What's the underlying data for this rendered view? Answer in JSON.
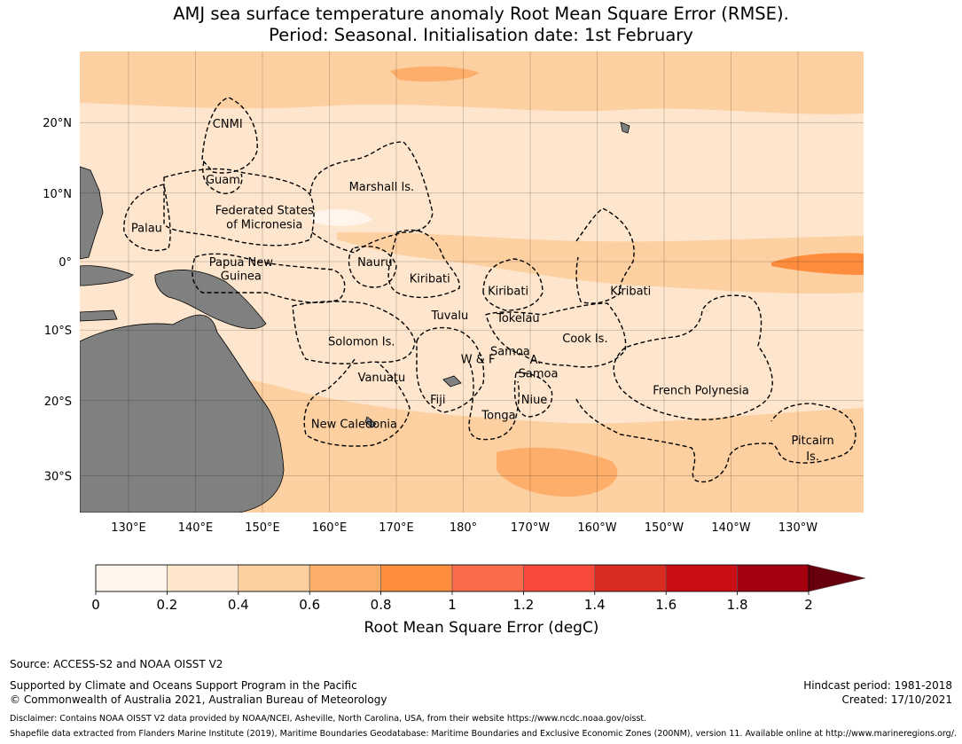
{
  "title": {
    "line1": "AMJ sea surface temperature anomaly Root Mean Square Error (RMSE).",
    "line2": "Period: Seasonal. Initialisation date: 1st February"
  },
  "map": {
    "lat_labels": [
      {
        "text": "20°N",
        "lat": 20
      },
      {
        "text": "10°N",
        "lat": 10
      },
      {
        "text": "0°",
        "lat": 0
      },
      {
        "text": "10°S",
        "lat": -10
      },
      {
        "text": "20°S",
        "lat": -20
      },
      {
        "text": "30°S",
        "lat": -30
      }
    ],
    "lon_labels": [
      {
        "text": "130°E",
        "lon": 130
      },
      {
        "text": "140°E",
        "lon": 140
      },
      {
        "text": "150°E",
        "lon": 150
      },
      {
        "text": "160°E",
        "lon": 160
      },
      {
        "text": "170°E",
        "lon": 170
      },
      {
        "text": "180°",
        "lon": 180
      },
      {
        "text": "170°W",
        "lon": 190
      },
      {
        "text": "160°W",
        "lon": 200
      },
      {
        "text": "150°W",
        "lon": 210
      },
      {
        "text": "140°W",
        "lon": 220
      },
      {
        "text": "130°W",
        "lon": 230
      }
    ],
    "regions": [
      {
        "name": "CNMI",
        "lon": 144.8,
        "lat": 19.9
      },
      {
        "name": "Guam",
        "lon": 144.1,
        "lat": 12.0
      },
      {
        "name": "Marshall Is.",
        "lon": 167.8,
        "lat": 11.0
      },
      {
        "name": "Federated States",
        "lon": 150.3,
        "lat": 7.6
      },
      {
        "name": "of Micronesia",
        "lon": 150.3,
        "lat": 5.5
      },
      {
        "name": "Palau",
        "lon": 132.7,
        "lat": 5.0
      },
      {
        "name": "Nauru",
        "lon": 166.8,
        "lat": 0.0
      },
      {
        "name": "Papua New",
        "lon": 146.8,
        "lat": 0.0
      },
      {
        "name": "Guinea",
        "lon": 146.8,
        "lat": -2.0
      },
      {
        "name": "Kiribati",
        "lon": 175.0,
        "lat": -2.4
      },
      {
        "name": "Kiribati",
        "lon": 186.7,
        "lat": -4.2
      },
      {
        "name": "Kiribati",
        "lon": 205.0,
        "lat": -4.2
      },
      {
        "name": "Tuvalu",
        "lon": 178.0,
        "lat": -7.8
      },
      {
        "name": "Tokelau",
        "lon": 188.2,
        "lat": -8.2
      },
      {
        "name": "Solomon Is.",
        "lon": 164.8,
        "lat": -11.6
      },
      {
        "name": "Cook Is.",
        "lon": 198.2,
        "lat": -11.1
      },
      {
        "name": "Samoa",
        "lon": 187.0,
        "lat": -13.0
      },
      {
        "name": "W & F",
        "lon": 182.2,
        "lat": -14.1
      },
      {
        "name": "A.",
        "lon": 190.8,
        "lat": -14.2
      },
      {
        "name": "Samoa",
        "lon": 191.2,
        "lat": -16.1
      },
      {
        "name": "Vanuatu",
        "lon": 167.8,
        "lat": -16.7
      },
      {
        "name": "French Polynesia",
        "lon": 215.5,
        "lat": -18.5
      },
      {
        "name": "Fiji",
        "lon": 176.2,
        "lat": -19.8
      },
      {
        "name": "Niue",
        "lon": 190.6,
        "lat": -19.8
      },
      {
        "name": "Tonga",
        "lon": 185.3,
        "lat": -21.9
      },
      {
        "name": "New Caledonia",
        "lon": 163.7,
        "lat": -23.1
      },
      {
        "name": "Pitcairn",
        "lon": 232.2,
        "lat": -25.3
      },
      {
        "name": "Is.",
        "lon": 232.2,
        "lat": -27.4
      }
    ]
  },
  "colorbar": {
    "ticks": [
      "0",
      "0.2",
      "0.4",
      "0.6",
      "0.8",
      "1",
      "1.2",
      "1.4",
      "1.6",
      "1.8",
      "2"
    ],
    "colors": [
      "#fff5eb",
      "#fee6ce",
      "#fdd0a2",
      "#fdae6b",
      "#fd8d3c",
      "#fc6a4c",
      "#fb4a3c",
      "#d92b20",
      "#cb0d15",
      "#a50010"
    ],
    "extend_color": "#67000d",
    "label": "Root Mean Square Error (degC)"
  },
  "footer": {
    "source": "Source: ACCESS-S2 and NOAA OISST V2",
    "supported": "Supported by Climate and Oceans Support Program in the Pacific",
    "copyright": "© Commonwealth of Australia 2021, Australian Bureau of Meteorology",
    "hindcast": "Hindcast period: 1981-2018",
    "created": "Created: 17/10/2021",
    "disclaimer": "Disclaimer: Contains NOAA OISST V2 data provided by NOAA/NCEI, Asheville, North Carolina, USA, from their website https://www.ncdc.noaa.gov/oisst.",
    "shapefile": "Shapefile data extracted from Flanders Marine Institute (2019), Maritime Boundaries Geodatabase: Maritime Boundaries and Exclusive Economic Zones (200NM), version 11. Available online at http://www.marineregions.org/."
  }
}
